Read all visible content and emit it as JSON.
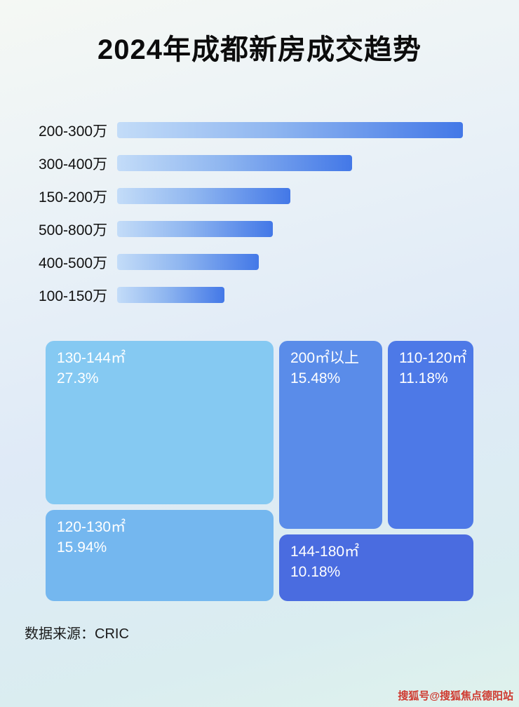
{
  "page": {
    "title": "2024年成都新房成交趋势",
    "source": "数据来源：CRIC",
    "watermark": "搜狐号@搜狐焦点德阳站"
  },
  "colors": {
    "bar_gradient_start": "#c3dcf8",
    "bar_gradient_end": "#4378e7",
    "title_color": "#0c0c0c",
    "watermark_color": "#cf3a30"
  },
  "chart_data": [
    {
      "type": "bar",
      "orientation": "horizontal",
      "title": "2024年成都新房成交趋势",
      "categories": [
        "200-300万",
        "300-400万",
        "150-200万",
        "500-800万",
        "400-500万",
        "100-150万"
      ],
      "values": [
        100,
        68,
        50,
        45,
        41,
        31
      ],
      "value_note": "relative bar lengths, no numeric axis shown in image",
      "xlabel": "",
      "ylabel": "",
      "grid": false,
      "legend": false
    },
    {
      "type": "treemap",
      "items": [
        {
          "label": "130-144㎡",
          "value": 27.3,
          "value_label": "27.3%",
          "color": "#85c9f2"
        },
        {
          "label": "200㎡以上",
          "value": 15.48,
          "value_label": "15.48%",
          "color": "#5a8ce9"
        },
        {
          "label": "110-120㎡",
          "value": 11.18,
          "value_label": "11.18%",
          "color": "#4d79e7"
        },
        {
          "label": "120-130㎡",
          "value": 15.94,
          "value_label": "15.94%",
          "color": "#74b7ef"
        },
        {
          "label": "144-180㎡",
          "value": 10.18,
          "value_label": "10.18%",
          "color": "#4a6ce0"
        }
      ],
      "legend": false
    }
  ]
}
